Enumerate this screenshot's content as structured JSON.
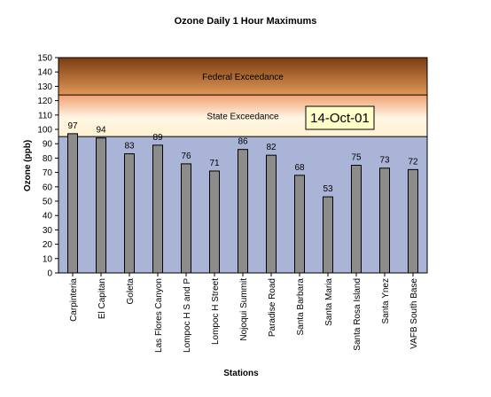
{
  "chart_data": {
    "type": "bar",
    "title": "Ozone Daily 1 Hour Maximums",
    "xlabel": "Stations",
    "ylabel": "Ozone (ppb)",
    "ylim": [
      0,
      150
    ],
    "ytick_step": 10,
    "categories": [
      "Carpinteria",
      "El Capitan",
      "Goleta",
      "Las Flores Canyon",
      "Lompoc H S and P",
      "Lompoc H Street",
      "Nojoqui Summit",
      "Paradise Road",
      "Santa Barbara",
      "Santa Maria",
      "Santa Rosa Island",
      "Santa Ynez",
      "VAFB South Base"
    ],
    "values": [
      97,
      94,
      83,
      89,
      76,
      71,
      86,
      82,
      68,
      53,
      75,
      73,
      72
    ],
    "data_labels": [
      "97",
      "94",
      "83",
      "89",
      "76",
      "71",
      "86",
      "82",
      "68",
      "53",
      "75",
      "73",
      "72"
    ],
    "bands": [
      {
        "label": "State Exceedance",
        "from": 95,
        "to": 124
      },
      {
        "label": "Federal Exceedance",
        "from": 124,
        "to": 150
      }
    ],
    "date_label": "14-Oct-01",
    "grid": false,
    "legend": "none",
    "colors": {
      "bar": "#8c8c8c",
      "bar_edge": "#000000",
      "below_standard": "#aab4d6",
      "state_band_low": "#fff2d2",
      "state_band_high": "#f0a070",
      "federal_band_low": "#e09858",
      "federal_band_high": "#7a3c10",
      "date_box": "#ffffc8"
    }
  }
}
